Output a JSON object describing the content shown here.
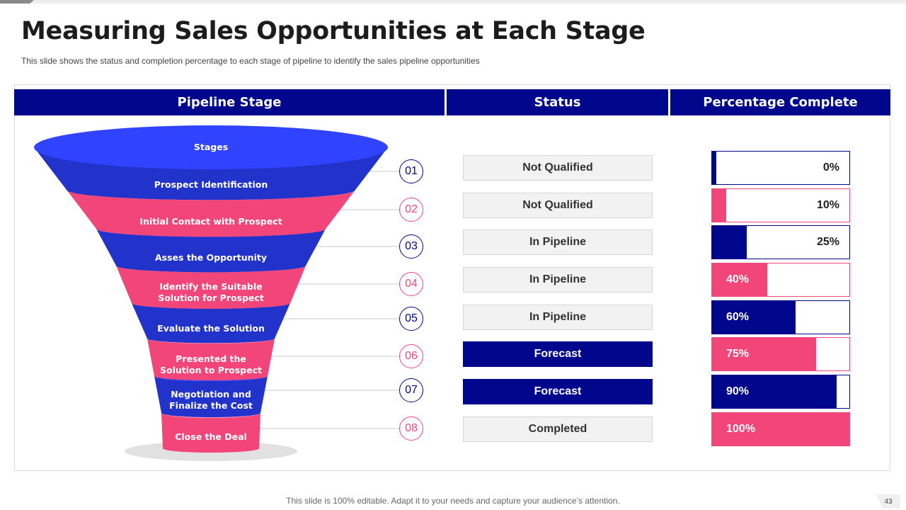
{
  "title": "Measuring Sales Opportunities at Each Stage",
  "subtitle": "This slide shows the status and completion percentage to each stage of pipeline to identify the sales pipeline opportunities",
  "headers": {
    "stage": "Pipeline Stage",
    "status": "Status",
    "percentage": "Percentage Complete"
  },
  "funnel_top_label": "Stages",
  "colors": {
    "blue": "#00078c",
    "funnel_blue": "#2233cc",
    "funnel_blue_light": "#3044ff",
    "pink": "#f2457a",
    "pink_light": "#ff8fb5"
  },
  "rows": [
    {
      "number": "01",
      "stage": "Prospect Identification",
      "status": "Not Qualified",
      "status_style": "grey",
      "percent": 0,
      "percent_label": "0%",
      "color": "blue"
    },
    {
      "number": "02",
      "stage": "Initial Contact with Prospect",
      "status": "Not Qualified",
      "status_style": "grey",
      "percent": 10,
      "percent_label": "10%",
      "color": "pink"
    },
    {
      "number": "03",
      "stage": "Asses the Opportunity",
      "status": "In Pipeline",
      "status_style": "grey",
      "percent": 25,
      "percent_label": "25%",
      "color": "blue"
    },
    {
      "number": "04",
      "stage": "Identify the Suitable\nSolution for Prospect",
      "status": "In Pipeline",
      "status_style": "grey",
      "percent": 40,
      "percent_label": "40%",
      "color": "pink"
    },
    {
      "number": "05",
      "stage": "Evaluate the Solution",
      "status": "In Pipeline",
      "status_style": "grey",
      "percent": 60,
      "percent_label": "60%",
      "color": "blue"
    },
    {
      "number": "06",
      "stage": "Presented the\nSolution to Prospect",
      "status": "Forecast",
      "status_style": "blue",
      "percent": 75,
      "percent_label": "75%",
      "color": "pink"
    },
    {
      "number": "07",
      "stage": "Negotiation and\nFinalize the Cost",
      "status": "Forecast",
      "status_style": "blue",
      "percent": 90,
      "percent_label": "90%",
      "color": "blue"
    },
    {
      "number": "08",
      "stage": "Close the Deal",
      "status": "Completed",
      "status_style": "grey",
      "percent": 100,
      "percent_label": "100%",
      "color": "pink"
    }
  ],
  "footer": "This slide is 100% editable. Adapt it to your needs and capture your audience’s attention.",
  "page_number": "43"
}
